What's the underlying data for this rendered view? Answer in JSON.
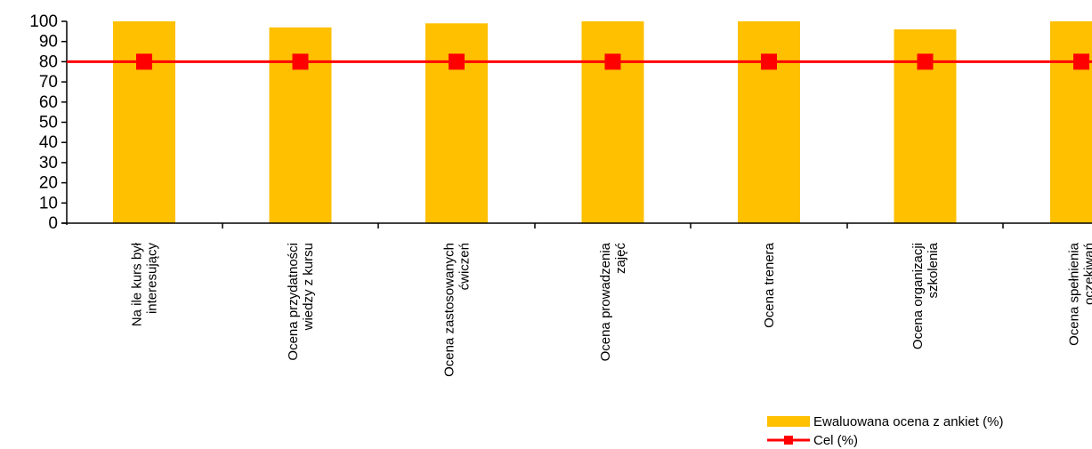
{
  "chart_data": {
    "type": "bar",
    "categories": [
      [
        "Na ile kurs był",
        "interesujący"
      ],
      [
        "Ocena przydatności",
        "wiedzy z kursu"
      ],
      [
        "Ocena zastosowanych",
        "ćwiczeń"
      ],
      [
        "Ocena prowadzenia",
        "zajęć"
      ],
      [
        "Ocena trenera"
      ],
      [
        "Ocena organizacji",
        "szkolenia"
      ],
      [
        "Ocena spełnienia",
        "oczekiwań"
      ]
    ],
    "series": [
      {
        "name": "Ewaluowana ocena z ankiet (%)",
        "type": "bar",
        "values": [
          100,
          97,
          99,
          100,
          100,
          96,
          100
        ],
        "color": "#FFC000"
      },
      {
        "name": "Cel (%)",
        "type": "line",
        "values": [
          80,
          80,
          80,
          80,
          80,
          80,
          80
        ],
        "color": "#FF0000"
      }
    ],
    "ylim": [
      0,
      100
    ],
    "yticks": [
      0,
      10,
      20,
      30,
      40,
      50,
      60,
      70,
      80,
      90,
      100
    ],
    "title": "",
    "xlabel": "",
    "ylabel": "",
    "legend_position": "bottom-right",
    "grid": false
  }
}
